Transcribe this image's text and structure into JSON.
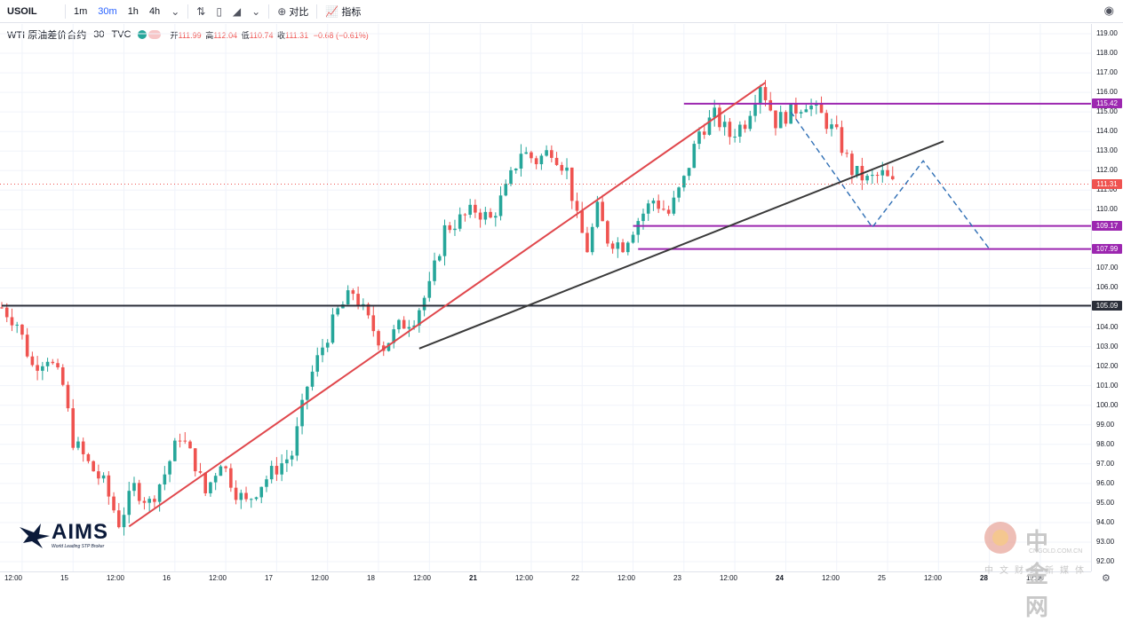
{
  "toolbar": {
    "symbol": "USOIL",
    "intervals": [
      "1m",
      "30m",
      "1h",
      "4h"
    ],
    "active_interval": "30m",
    "compare_label": "对比",
    "indicators_label": "指标"
  },
  "legend": {
    "title": "WTI 原油差价合约",
    "interval": "30",
    "source": "TVC",
    "open_label": "开",
    "open": "111.99",
    "high_label": "高",
    "high": "112.04",
    "low_label": "低",
    "low": "110.74",
    "close_label": "收",
    "close": "111.31",
    "change": "−0.68 (−0.61%)"
  },
  "colors": {
    "up": "#26a69a",
    "down": "#ef5350",
    "trend_red": "#e0474c",
    "trend_black": "#3a3a3a",
    "level_purple": "#9c27b0",
    "level_black": "#2a2e39",
    "projection": "#2f6fb5"
  },
  "branding": {
    "logo_text": "AIMS",
    "logo_tagline": "World Leading STP Broker",
    "watermark_cn": "中金网",
    "watermark_url": "CNGOLD.COM.CN",
    "watermark_sub": "中文财经新媒体"
  },
  "chart_data": {
    "type": "candlestick",
    "symbol": "USOIL",
    "ylim": [
      91.5,
      119.5
    ],
    "y_ticks": [
      "119.00",
      "118.00",
      "117.00",
      "116.00",
      "115.00",
      "114.00",
      "113.00",
      "112.00",
      "111.00",
      "110.00",
      "109.00",
      "108.00",
      "107.00",
      "106.00",
      "105.00",
      "104.00",
      "103.00",
      "102.00",
      "101.00",
      "100.00",
      "99.00",
      "98.00",
      "97.00",
      "96.00",
      "95.00",
      "94.00",
      "93.00",
      "92.00"
    ],
    "x_ticks": [
      {
        "label": "12:00",
        "bold": false
      },
      {
        "label": "15",
        "bold": false
      },
      {
        "label": "12:00",
        "bold": false
      },
      {
        "label": "16",
        "bold": false
      },
      {
        "label": "12:00",
        "bold": false
      },
      {
        "label": "17",
        "bold": false
      },
      {
        "label": "12:00",
        "bold": false
      },
      {
        "label": "18",
        "bold": false
      },
      {
        "label": "12:00",
        "bold": false
      },
      {
        "label": "21",
        "bold": true
      },
      {
        "label": "12:00",
        "bold": false
      },
      {
        "label": "22",
        "bold": false
      },
      {
        "label": "12:00",
        "bold": false
      },
      {
        "label": "23",
        "bold": false
      },
      {
        "label": "12:00",
        "bold": false
      },
      {
        "label": "24",
        "bold": true
      },
      {
        "label": "12:00",
        "bold": false
      },
      {
        "label": "25",
        "bold": false
      },
      {
        "label": "12:00",
        "bold": false
      },
      {
        "label": "28",
        "bold": true
      },
      {
        "label": "12:00",
        "bold": false
      }
    ],
    "bars": 180,
    "close_path": [
      [
        0,
        105.0
      ],
      [
        3,
        104.2
      ],
      [
        6,
        102.0
      ],
      [
        9,
        102.5
      ],
      [
        12,
        101.0
      ],
      [
        14,
        98.2
      ],
      [
        17,
        97.0
      ],
      [
        20,
        96.0
      ],
      [
        23,
        94.0
      ],
      [
        26,
        95.8
      ],
      [
        29,
        95.0
      ],
      [
        32,
        96.5
      ],
      [
        35,
        98.5
      ],
      [
        38,
        97.0
      ],
      [
        40,
        95.5
      ],
      [
        43,
        97.2
      ],
      [
        46,
        95.6
      ],
      [
        48,
        95.0
      ],
      [
        51,
        96.0
      ],
      [
        54,
        96.8
      ],
      [
        57,
        97.5
      ],
      [
        60,
        101.0
      ],
      [
        63,
        103.0
      ],
      [
        66,
        104.8
      ],
      [
        69,
        105.8
      ],
      [
        72,
        104.3
      ],
      [
        75,
        103.0
      ],
      [
        78,
        104.0
      ],
      [
        81,
        104.5
      ],
      [
        84,
        106.0
      ],
      [
        87,
        109.0
      ],
      [
        90,
        109.5
      ],
      [
        93,
        110.0
      ],
      [
        96,
        109.5
      ],
      [
        99,
        111.0
      ],
      [
        102,
        113.0
      ],
      [
        105,
        112.5
      ],
      [
        108,
        113.1
      ],
      [
        111,
        112.0
      ],
      [
        113,
        109.5
      ],
      [
        115,
        108.0
      ],
      [
        117,
        110.0
      ],
      [
        119,
        108.5
      ],
      [
        122,
        108.2
      ],
      [
        125,
        109.5
      ],
      [
        128,
        110.5
      ],
      [
        131,
        109.8
      ],
      [
        134,
        111.5
      ],
      [
        137,
        114.0
      ],
      [
        140,
        114.8
      ],
      [
        143,
        113.8
      ],
      [
        146,
        114.5
      ],
      [
        149,
        116.5
      ],
      [
        152,
        114.5
      ],
      [
        155,
        115.0
      ],
      [
        158,
        115.5
      ],
      [
        161,
        114.8
      ],
      [
        164,
        113.8
      ],
      [
        167,
        112.0
      ],
      [
        170,
        111.5
      ],
      [
        173,
        111.8
      ],
      [
        175,
        111.3
      ]
    ],
    "levels": [
      {
        "label": "115.42",
        "value": 115.42,
        "color": "level_purple",
        "from_bar": 134
      },
      {
        "label": "109.17",
        "value": 109.17,
        "color": "level_purple",
        "from_bar": 124
      },
      {
        "label": "107.99",
        "value": 107.99,
        "color": "level_purple",
        "from_bar": 125
      },
      {
        "label": "105.09",
        "value": 105.09,
        "color": "level_black",
        "from_bar": 0
      }
    ],
    "last_price": {
      "label": "111.31",
      "value": 111.31
    },
    "trendlines": [
      {
        "color": "trend_red",
        "points": [
          [
            25,
            93.8
          ],
          [
            150,
            116.5
          ]
        ]
      },
      {
        "color": "trend_black",
        "points": [
          [
            82,
            102.9
          ],
          [
            185,
            113.5
          ]
        ]
      }
    ],
    "projection": [
      [
        155,
        115.0
      ],
      [
        171,
        109.1
      ],
      [
        181,
        112.5
      ],
      [
        194,
        107.99
      ]
    ]
  }
}
